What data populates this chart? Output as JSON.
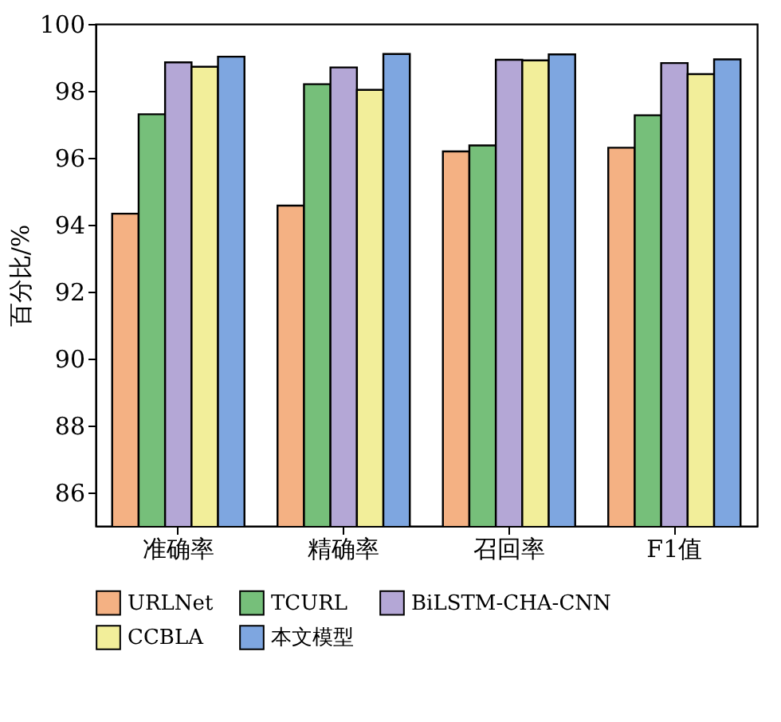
{
  "chart_data": {
    "type": "bar",
    "ylabel": "百分比/%",
    "categories": [
      "准确率",
      "精确率",
      "召回率",
      "F1值"
    ],
    "series": [
      {
        "name": "URLNet",
        "color": "#f4b183",
        "values": [
          94.33,
          94.57,
          96.19,
          96.3
        ]
      },
      {
        "name": "TCURL",
        "color": "#76bf7a",
        "values": [
          97.3,
          98.2,
          96.37,
          97.27
        ]
      },
      {
        "name": "BiLSTM-CHA-CNN",
        "color": "#b4a7d6",
        "values": [
          98.85,
          98.7,
          98.93,
          98.83
        ]
      },
      {
        "name": "CCBLA",
        "color": "#f2ee9a",
        "values": [
          98.72,
          98.03,
          98.91,
          98.5
        ]
      },
      {
        "name": "本文模型",
        "color": "#7ea6e0",
        "values": [
          99.02,
          99.1,
          99.09,
          98.94
        ]
      }
    ],
    "ylim": [
      85,
      100
    ],
    "yticks": [
      86,
      88,
      90,
      92,
      94,
      96,
      98,
      100
    ],
    "grid": false,
    "legend": "bottom"
  }
}
